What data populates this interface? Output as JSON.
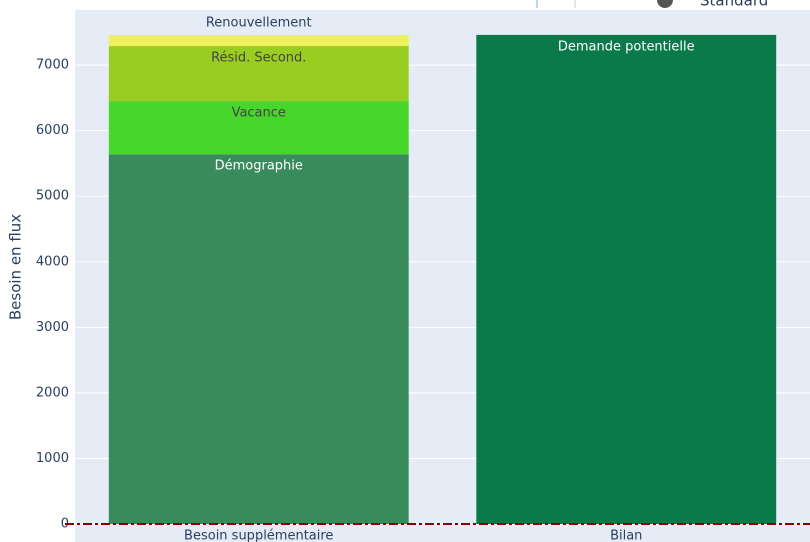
{
  "chart_data": {
    "type": "bar",
    "stacked": true,
    "ylabel": "Besoin en flux",
    "categories": [
      "Besoin supplémentaire",
      "Bilan"
    ],
    "series": [
      {
        "name": "Démographie",
        "color": "#3a8b5b",
        "text_color": "#ffffff",
        "values": [
          5640,
          null
        ]
      },
      {
        "name": "Vacance",
        "color": "#47d62a",
        "text_color": "#444444",
        "values": [
          810,
          null
        ]
      },
      {
        "name": "Résid. Second.",
        "color": "#9acd22",
        "text_color": "#444444",
        "values": [
          840,
          null
        ]
      },
      {
        "name": "Renouvellement",
        "color": "#eef25a",
        "text_color": "#2a3f5f",
        "values": [
          170,
          null
        ]
      },
      {
        "name": "Demande potentielle",
        "color": "#0b7a4b",
        "text_color": "#ffffff",
        "values": [
          null,
          7460
        ]
      }
    ],
    "ylim": [
      0,
      7840
    ],
    "yticks": [
      0,
      1000,
      2000,
      3000,
      4000,
      5000,
      6000,
      7000
    ],
    "grid": true,
    "reference_line": {
      "value": 0,
      "color": "#8b0000"
    },
    "toolbar_label": "Standard"
  }
}
